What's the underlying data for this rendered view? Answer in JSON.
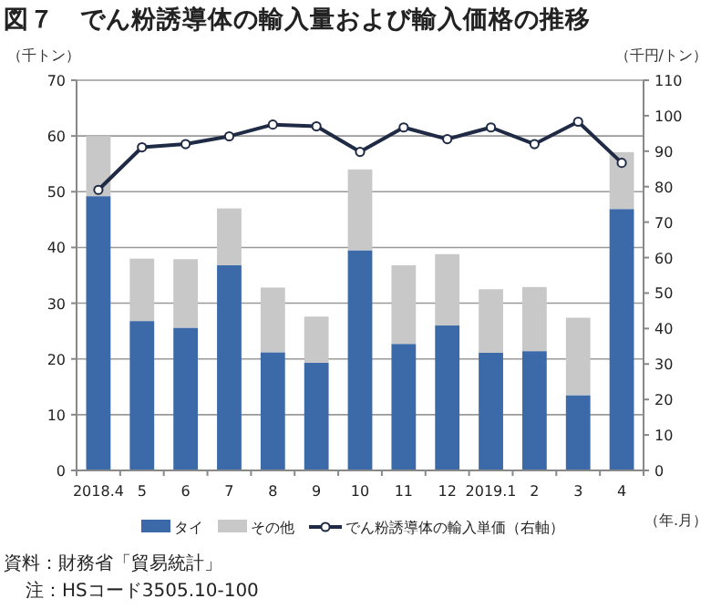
{
  "chart_data": {
    "type": "bar",
    "title": "図７　でん粉誘導体の輸入量および輸入価格の推移",
    "ylabel": "（千トン）",
    "y2label": "（千円/トン）",
    "xlabel": "（年.月）",
    "categories": [
      "2018.4",
      "5",
      "6",
      "7",
      "8",
      "9",
      "10",
      "11",
      "12",
      "2019.1",
      "2",
      "3",
      "4"
    ],
    "stacked": true,
    "series": [
      {
        "name": "タイ",
        "color": "#3c6aa8",
        "values": [
          49.2,
          26.8,
          25.6,
          36.8,
          21.2,
          19.3,
          39.5,
          22.7,
          26.0,
          21.1,
          21.4,
          13.5,
          46.9
        ]
      },
      {
        "name": "その他",
        "color": "#c8c8c8",
        "values": [
          10.8,
          11.2,
          12.3,
          10.2,
          11.6,
          8.3,
          14.5,
          14.1,
          12.8,
          11.4,
          11.5,
          13.9,
          10.2
        ]
      },
      {
        "name": "でん粉誘導体の輸入単価（右軸）",
        "type": "line",
        "axis": "y2",
        "color": "#1f2a44",
        "marker": "circle",
        "values": [
          79.1,
          91.1,
          92.0,
          94.2,
          97.5,
          97.0,
          89.8,
          96.7,
          93.4,
          96.7,
          92.0,
          98.3,
          86.7
        ]
      }
    ],
    "ylim": [
      0,
      70
    ],
    "yticks": [
      0,
      10,
      20,
      30,
      40,
      50,
      60,
      70
    ],
    "y2lim": [
      0,
      110
    ],
    "y2ticks": [
      0,
      10,
      20,
      30,
      40,
      50,
      60,
      70,
      80,
      90,
      100,
      110
    ],
    "grid": "y",
    "legend": "bottom",
    "annotations": [
      "資料：財務省「貿易統計」",
      "注：HSコード3505.10-100"
    ]
  }
}
